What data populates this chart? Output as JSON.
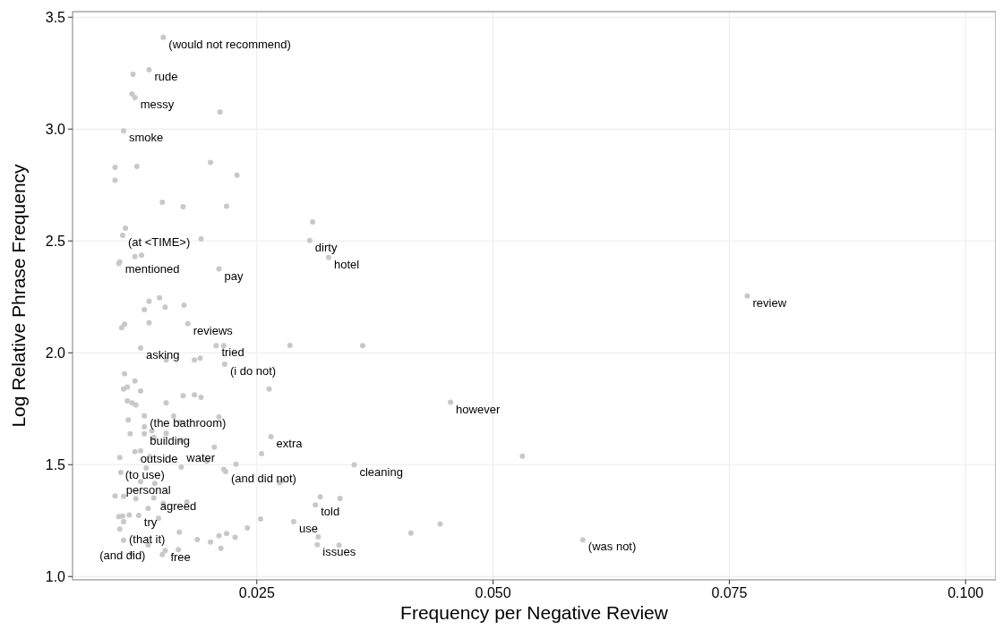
{
  "chart_data": {
    "type": "scatter",
    "xlabel": "Frequency per Negative Review",
    "ylabel": "Log Relative Phrase Frequency",
    "xlim": [
      0.0055,
      0.1032
    ],
    "ylim": [
      0.985,
      3.525
    ],
    "xticks": [
      0.025,
      {
        "value": 0.05,
        "label": "0.050"
      },
      0.075,
      {
        "value": 0.1,
        "label": "0.100"
      }
    ],
    "yticks": [
      {
        "value": 1,
        "label": "1.0"
      },
      1.5,
      {
        "value": 2,
        "label": "2.0"
      },
      2.5,
      {
        "value": 3,
        "label": "3.0"
      },
      3.5
    ],
    "grid": true,
    "marker": "circle",
    "series": [
      {
        "color": "#c8c8c8",
        "x": [
          0.0151,
          0.0119,
          0.0136,
          0.0118,
          0.0121,
          0.0211,
          0.0109,
          0.01,
          0.0123,
          0.01,
          0.0201,
          0.0229,
          0.015,
          0.0172,
          0.0218,
          0.0111,
          0.0108,
          0.0191,
          0.0309,
          0.0306,
          0.0121,
          0.0128,
          0.0105,
          0.0104,
          0.021,
          0.0326,
          0.0147,
          0.0136,
          0.0153,
          0.0173,
          0.0131,
          0.011,
          0.0107,
          0.0136,
          0.0177,
          0.0207,
          0.0215,
          0.0285,
          0.0362,
          0.0127,
          0.0154,
          0.0184,
          0.019,
          0.0216,
          0.011,
          0.0121,
          0.0113,
          0.0109,
          0.0127,
          0.0263,
          0.0172,
          0.0184,
          0.0191,
          0.0154,
          0.0113,
          0.0118,
          0.0122,
          0.0769,
          0.0455,
          0.0131,
          0.0162,
          0.021,
          0.0114,
          0.0169,
          0.0131,
          0.0139,
          0.0154,
          0.0116,
          0.0131,
          0.0141,
          0.017,
          0.0205,
          0.0265,
          0.0255,
          0.0531,
          0.0121,
          0.0127,
          0.0137,
          0.0105,
          0.0197,
          0.0133,
          0.017,
          0.0228,
          0.0215,
          0.0217,
          0.0353,
          0.0106,
          0.0127,
          0.0142,
          0.0274,
          0.0277,
          0.0151,
          0.01,
          0.0109,
          0.0122,
          0.0141,
          0.0176,
          0.0317,
          0.0338,
          0.0312,
          0.0135,
          0.0104,
          0.0108,
          0.0115,
          0.0125,
          0.0146,
          0.0109,
          0.0105,
          0.0168,
          0.0254,
          0.0289,
          0.024,
          0.0218,
          0.021,
          0.0227,
          0.0187,
          0.0201,
          0.0109,
          0.0135,
          0.0212,
          0.0117,
          0.015,
          0.0153,
          0.0167,
          0.0413,
          0.0444,
          0.0315,
          0.0314,
          0.0337,
          0.0595
        ],
        "values": [
          3.41,
          3.245,
          3.265,
          3.157,
          3.141,
          3.076,
          2.992,
          2.829,
          2.833,
          2.771,
          2.851,
          2.794,
          2.673,
          2.653,
          2.655,
          2.557,
          2.525,
          2.509,
          2.585,
          2.502,
          2.43,
          2.436,
          2.406,
          2.399,
          2.375,
          2.426,
          2.246,
          2.23,
          2.204,
          2.213,
          2.193,
          2.128,
          2.112,
          2.134,
          2.13,
          2.032,
          2.032,
          2.033,
          2.032,
          2.021,
          1.968,
          1.968,
          1.976,
          1.949,
          1.906,
          1.874,
          1.847,
          1.838,
          1.829,
          1.838,
          1.808,
          1.812,
          1.801,
          1.776,
          1.785,
          1.776,
          1.767,
          2.254,
          1.779,
          1.718,
          1.717,
          1.713,
          1.7,
          1.689,
          1.669,
          1.651,
          1.64,
          1.638,
          1.638,
          1.622,
          1.609,
          1.578,
          1.625,
          1.549,
          1.538,
          1.558,
          1.562,
          1.536,
          1.532,
          1.515,
          1.485,
          1.489,
          1.502,
          1.479,
          1.469,
          1.499,
          1.465,
          1.424,
          1.416,
          1.419,
          1.428,
          1.327,
          1.36,
          1.358,
          1.348,
          1.351,
          1.333,
          1.356,
          1.349,
          1.32,
          1.304,
          1.268,
          1.27,
          1.275,
          1.273,
          1.26,
          1.245,
          1.212,
          1.198,
          1.257,
          1.245,
          1.217,
          1.192,
          1.182,
          1.175,
          1.165,
          1.154,
          1.162,
          1.141,
          1.126,
          1.103,
          1.098,
          1.116,
          1.12,
          1.194,
          1.234,
          1.177,
          1.142,
          1.14,
          1.164
        ]
      }
    ],
    "annotations": [
      {
        "text": "(would not recommend)",
        "x": 0.0151,
        "y": 3.41
      },
      {
        "text": "rude",
        "x": 0.0136,
        "y": 3.265
      },
      {
        "text": "messy",
        "x": 0.0121,
        "y": 3.141
      },
      {
        "text": "smoke",
        "x": 0.0109,
        "y": 2.992
      },
      {
        "text": "(at <TIME>)",
        "x": 0.0108,
        "y": 2.525
      },
      {
        "text": "dirty",
        "x": 0.0306,
        "y": 2.502
      },
      {
        "text": "hotel",
        "x": 0.0326,
        "y": 2.426
      },
      {
        "text": "mentioned",
        "x": 0.0105,
        "y": 2.406
      },
      {
        "text": "pay",
        "x": 0.021,
        "y": 2.375
      },
      {
        "text": "review",
        "x": 0.0769,
        "y": 2.254
      },
      {
        "text": "reviews",
        "x": 0.0177,
        "y": 2.13
      },
      {
        "text": "tried",
        "x": 0.0207,
        "y": 2.032
      },
      {
        "text": "asking",
        "x": 0.0127,
        "y": 2.021
      },
      {
        "text": "(i do not)",
        "x": 0.0216,
        "y": 1.949
      },
      {
        "text": "however",
        "x": 0.0455,
        "y": 1.779
      },
      {
        "text": "(the bathroom)",
        "x": 0.0131,
        "y": 1.718
      },
      {
        "text": "building",
        "x": 0.0131,
        "y": 1.638
      },
      {
        "text": "extra",
        "x": 0.0265,
        "y": 1.625
      },
      {
        "text": "water",
        "x": 0.017,
        "y": 1.609
      },
      {
        "text": "outside",
        "x": 0.0121,
        "y": 1.558
      },
      {
        "text": "(to use)",
        "x": 0.0105,
        "y": 1.532
      },
      {
        "text": "cleaning",
        "x": 0.0353,
        "y": 1.499
      },
      {
        "text": "personal",
        "x": 0.0106,
        "y": 1.465
      },
      {
        "text": "agreed",
        "x": 0.0142,
        "y": 1.416
      },
      {
        "text": "(and did not)",
        "x": 0.0217,
        "y": 1.469
      },
      {
        "text": "told",
        "x": 0.0312,
        "y": 1.32
      },
      {
        "text": "try",
        "x": 0.0125,
        "y": 1.273
      },
      {
        "text": "use",
        "x": 0.0289,
        "y": 1.245
      },
      {
        "text": "(that it)",
        "x": 0.0109,
        "y": 1.245
      },
      {
        "text": "(was not)",
        "x": 0.0595,
        "y": 1.164
      },
      {
        "text": "issues",
        "x": 0.0314,
        "y": 1.142
      },
      {
        "text": "free",
        "x": 0.0153,
        "y": 1.116
      },
      {
        "text": "(and did)",
        "x": 0.015,
        "y": 1.098
      }
    ]
  }
}
